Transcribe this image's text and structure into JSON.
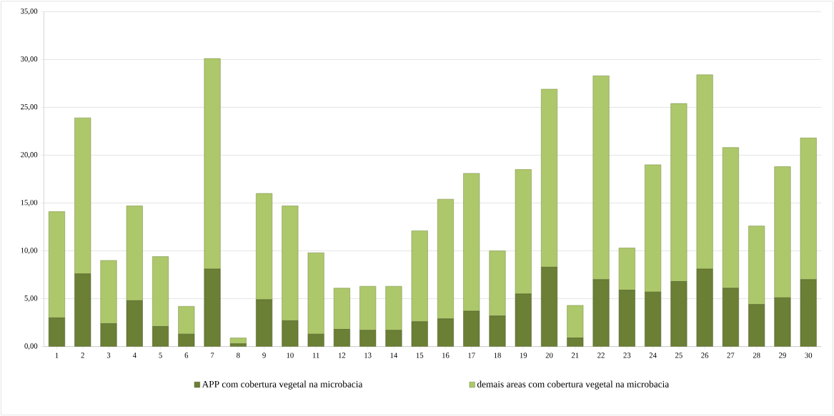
{
  "chart_data": {
    "type": "bar",
    "stacked": true,
    "categories": [
      "1",
      "2",
      "3",
      "4",
      "5",
      "6",
      "7",
      "8",
      "9",
      "10",
      "11",
      "12",
      "13",
      "14",
      "15",
      "16",
      "17",
      "18",
      "19",
      "20",
      "21",
      "22",
      "23",
      "24",
      "25",
      "26",
      "27",
      "28",
      "29",
      "30"
    ],
    "series": [
      {
        "name": "APP com cobertura vegetal na microbacia",
        "color": "#6b7f35",
        "values": [
          3.0,
          7.6,
          2.4,
          4.8,
          2.1,
          1.3,
          8.1,
          0.3,
          4.9,
          2.7,
          1.3,
          1.8,
          1.7,
          1.7,
          2.6,
          2.9,
          3.7,
          3.2,
          5.5,
          8.3,
          0.9,
          7.0,
          5.9,
          5.7,
          6.8,
          8.1,
          6.1,
          4.4,
          5.1,
          7.0
        ]
      },
      {
        "name": "demais areas com cobertura vegetal na microbacia",
        "color": "#adc86a",
        "values": [
          11.1,
          16.3,
          6.6,
          9.9,
          7.3,
          2.9,
          22.0,
          0.6,
          11.1,
          12.0,
          8.5,
          4.3,
          4.6,
          4.6,
          9.5,
          12.5,
          14.4,
          6.8,
          13.0,
          18.6,
          3.4,
          21.3,
          4.4,
          13.3,
          18.6,
          20.3,
          14.7,
          8.2,
          13.7,
          14.8
        ]
      }
    ],
    "ylim": [
      0,
      35
    ],
    "yticks": [
      {
        "value": 0,
        "label": "0,00"
      },
      {
        "value": 5,
        "label": "5,00"
      },
      {
        "value": 10,
        "label": "10,00"
      },
      {
        "value": 15,
        "label": "15,00"
      },
      {
        "value": 20,
        "label": "20,00"
      },
      {
        "value": 25,
        "label": "25,00"
      },
      {
        "value": 30,
        "label": "30,00"
      },
      {
        "value": 35,
        "label": "35,00"
      }
    ],
    "grid": "y",
    "legend": "bottom"
  }
}
